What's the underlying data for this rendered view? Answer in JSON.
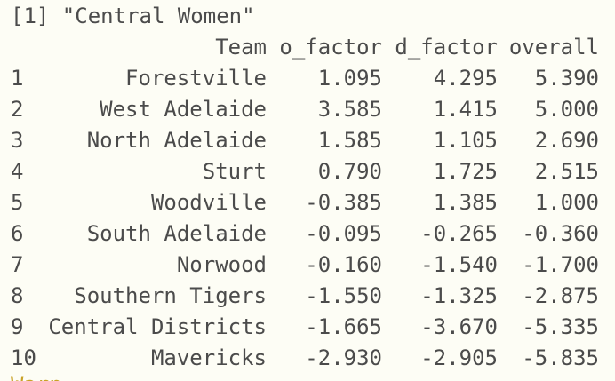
{
  "console": {
    "print_label": "[1] \"Central Women\"",
    "columns": [
      "",
      "Team",
      "o_factor",
      "d_factor",
      "overall"
    ],
    "rows": [
      {
        "idx": "1",
        "team": "Forestville",
        "o_factor": "1.095",
        "d_factor": "4.295",
        "overall": "5.390"
      },
      {
        "idx": "2",
        "team": "West Adelaide",
        "o_factor": "3.585",
        "d_factor": "1.415",
        "overall": "5.000"
      },
      {
        "idx": "3",
        "team": "North Adelaide",
        "o_factor": "1.585",
        "d_factor": "1.105",
        "overall": "2.690"
      },
      {
        "idx": "4",
        "team": "Sturt",
        "o_factor": "0.790",
        "d_factor": "1.725",
        "overall": "2.515"
      },
      {
        "idx": "5",
        "team": "Woodville",
        "o_factor": "-0.385",
        "d_factor": "1.385",
        "overall": "1.000"
      },
      {
        "idx": "6",
        "team": "South Adelaide",
        "o_factor": "-0.095",
        "d_factor": "-0.265",
        "overall": "-0.360"
      },
      {
        "idx": "7",
        "team": "Norwood",
        "o_factor": "-0.160",
        "d_factor": "-1.540",
        "overall": "-1.700"
      },
      {
        "idx": "8",
        "team": "Southern Tigers",
        "o_factor": "-1.550",
        "d_factor": "-1.325",
        "overall": "-2.875"
      },
      {
        "idx": "9",
        "team": "Central Districts",
        "o_factor": "-1.665",
        "d_factor": "-3.670",
        "overall": "-5.335"
      },
      {
        "idx": "10",
        "team": "Mavericks",
        "o_factor": "-2.930",
        "d_factor": "-2.905",
        "overall": "-5.835"
      }
    ],
    "next_prompt_partial": "Warni"
  },
  "colors": {
    "background": "#FDFDF5",
    "text": "#4b4b4b",
    "warning_partial": "#c9a227"
  }
}
